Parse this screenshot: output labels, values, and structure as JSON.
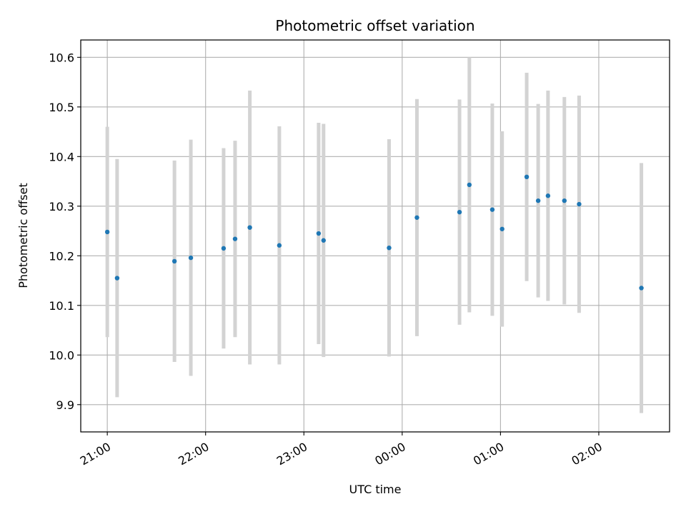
{
  "chart_data": {
    "type": "scatter",
    "title": "Photometric offset variation",
    "xlabel": "UTC time",
    "ylabel": "Photometric offset",
    "grid": true,
    "x_axis": {
      "ticks": [
        {
          "hours": 0,
          "label": "21:00"
        },
        {
          "hours": 1,
          "label": "22:00"
        },
        {
          "hours": 2,
          "label": "23:00"
        },
        {
          "hours": 3,
          "label": "00:00"
        },
        {
          "hours": 4,
          "label": "01:00"
        },
        {
          "hours": 5,
          "label": "02:00"
        }
      ],
      "range_hours": [
        -0.27,
        5.72
      ]
    },
    "y_axis": {
      "ticks": [
        {
          "value": 9.9,
          "label": "9.9"
        },
        {
          "value": 10.0,
          "label": "10.0"
        },
        {
          "value": 10.1,
          "label": "10.1"
        },
        {
          "value": 10.2,
          "label": "10.2"
        },
        {
          "value": 10.3,
          "label": "10.3"
        },
        {
          "value": 10.4,
          "label": "10.4"
        },
        {
          "value": 10.5,
          "label": "10.5"
        },
        {
          "value": 10.6,
          "label": "10.6"
        }
      ],
      "ylim": [
        9.845,
        10.635
      ]
    },
    "colors": {
      "point": "#1f77b4",
      "errorbar": "#d3d3d3",
      "grid": "#b0b0b0"
    },
    "points": [
      {
        "time": "21:00",
        "y": 10.248,
        "err": 0.212
      },
      {
        "time": "21:06",
        "y": 10.155,
        "err": 0.24
      },
      {
        "time": "21:41",
        "y": 10.189,
        "err": 0.203
      },
      {
        "time": "21:51",
        "y": 10.196,
        "err": 0.238
      },
      {
        "time": "22:11",
        "y": 10.215,
        "err": 0.202
      },
      {
        "time": "22:18",
        "y": 10.234,
        "err": 0.198
      },
      {
        "time": "22:27",
        "y": 10.257,
        "err": 0.276
      },
      {
        "time": "22:45",
        "y": 10.221,
        "err": 0.24
      },
      {
        "time": "23:09",
        "y": 10.245,
        "err": 0.223
      },
      {
        "time": "23:12",
        "y": 10.231,
        "err": 0.235
      },
      {
        "time": "23:52",
        "y": 10.216,
        "err": 0.219
      },
      {
        "time": "00:09",
        "y": 10.277,
        "err": 0.239
      },
      {
        "time": "00:35",
        "y": 10.288,
        "err": 0.227
      },
      {
        "time": "00:41",
        "y": 10.343,
        "err": 0.257
      },
      {
        "time": "00:55",
        "y": 10.293,
        "err": 0.214
      },
      {
        "time": "01:01",
        "y": 10.254,
        "err": 0.197
      },
      {
        "time": "01:16",
        "y": 10.359,
        "err": 0.21
      },
      {
        "time": "01:23",
        "y": 10.311,
        "err": 0.195
      },
      {
        "time": "01:29",
        "y": 10.321,
        "err": 0.212
      },
      {
        "time": "01:39",
        "y": 10.311,
        "err": 0.209
      },
      {
        "time": "01:48",
        "y": 10.304,
        "err": 0.219
      },
      {
        "time": "02:26",
        "y": 10.135,
        "err": 0.252
      }
    ]
  }
}
